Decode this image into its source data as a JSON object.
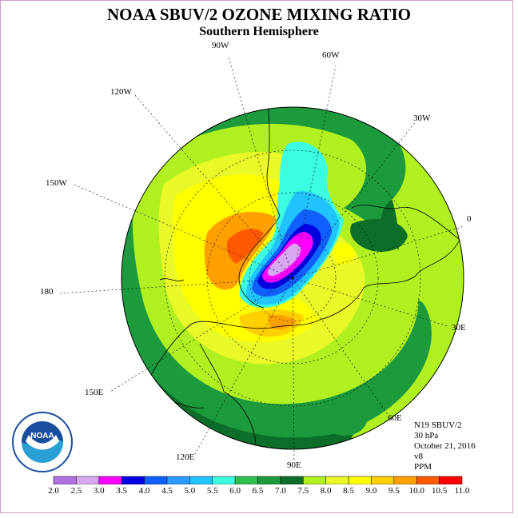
{
  "title": "NOAA SBUV/2 OZONE MIXING RATIO",
  "subtitle": "Southern Hemisphere",
  "longitude_labels": [
    "90W",
    "60W",
    "30W",
    "0",
    "30E",
    "60E",
    "90E",
    "120E",
    "150E",
    "180",
    "150W",
    "120W"
  ],
  "info": {
    "satellite": "N19 SBUV/2",
    "level": "30 hPa",
    "date": "October 21, 2016",
    "version": "v8",
    "units": "PPM"
  },
  "logo": {
    "text": "NOAA",
    "colors": {
      "ring": "#ffffff",
      "top": "#1a4fa0",
      "bottom": "#2a9fd6"
    }
  },
  "colorbar": {
    "ticks": [
      "2.0",
      "2.5",
      "3.0",
      "3.5",
      "4.0",
      "4.5",
      "5.0",
      "5.5",
      "6.0",
      "6.5",
      "7.0",
      "7.5",
      "8.0",
      "8.5",
      "9.0",
      "9.5",
      "10.0",
      "10.5",
      "11.0"
    ],
    "colors": [
      "#b070e0",
      "#d7a8f0",
      "#ff00ff",
      "#0000e0",
      "#1060ff",
      "#2a9cff",
      "#22c4ff",
      "#3cfee0",
      "#30c050",
      "#1c9a3c",
      "#0c6e28",
      "#b0f020",
      "#e8f828",
      "#ffff00",
      "#ffd000",
      "#ffa000",
      "#ff5a00",
      "#ff0000",
      "#8a5a3a"
    ]
  }
}
